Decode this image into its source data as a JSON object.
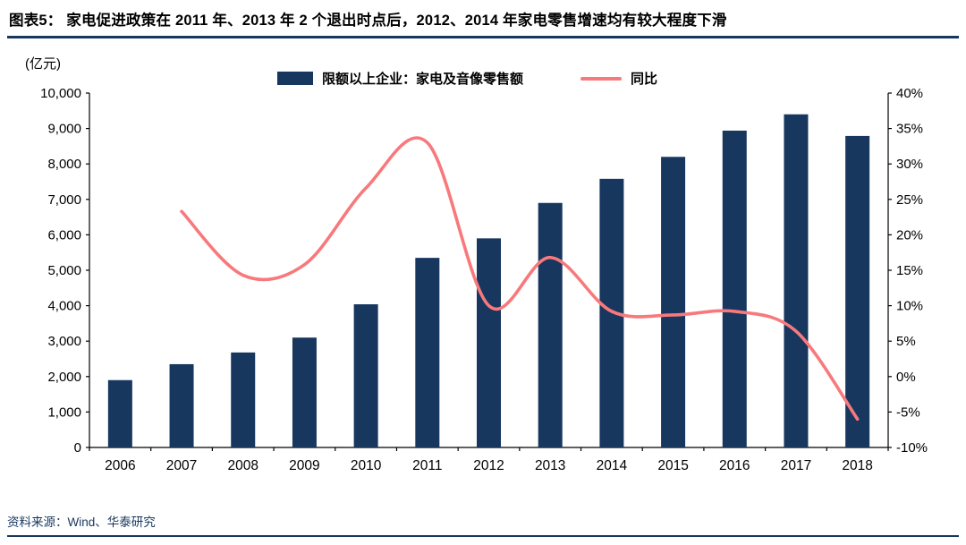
{
  "header": {
    "title": "图表5：  家电促进政策在 2011 年、2013 年 2 个退出时点后，2012、2014 年家电零售增速均有较大程度下滑"
  },
  "footer": {
    "source": "资料来源：Wind、华泰研究"
  },
  "colors": {
    "bar": "#17375E",
    "line": "#F8797C",
    "rule": "#17375E",
    "axis": "#000000"
  },
  "chart_data": {
    "type": "bar+line combo",
    "unit_label": "(亿元)",
    "categories": [
      "2006",
      "2007",
      "2008",
      "2009",
      "2010",
      "2011",
      "2012",
      "2013",
      "2014",
      "2015",
      "2016",
      "2017",
      "2018"
    ],
    "series": [
      {
        "name": "限额以上企业：家电及音像零售额",
        "type": "bar",
        "axis": "left",
        "color": "#17375E",
        "values": [
          1900,
          2350,
          2680,
          3100,
          4040,
          5350,
          5900,
          6900,
          7580,
          8200,
          8940,
          9400,
          8790
        ]
      },
      {
        "name": "同比",
        "type": "line",
        "axis": "right",
        "color": "#F8797C",
        "values": [
          null,
          23.3,
          14.3,
          15.8,
          26.6,
          33.0,
          10.0,
          16.8,
          9.2,
          8.7,
          9.2,
          6.4,
          -6.0
        ]
      }
    ],
    "left_axis": {
      "min": 0,
      "max": 10000,
      "step": 1000,
      "tick_labels": [
        "0",
        "1,000",
        "2,000",
        "3,000",
        "4,000",
        "5,000",
        "6,000",
        "7,000",
        "8,000",
        "9,000",
        "10,000"
      ]
    },
    "right_axis": {
      "min": -10,
      "max": 40,
      "step": 5,
      "tick_labels": [
        "-10%",
        "-5%",
        "0%",
        "5%",
        "10%",
        "15%",
        "20%",
        "25%",
        "30%",
        "35%",
        "40%"
      ]
    },
    "legend_position": "top",
    "grid": false
  }
}
